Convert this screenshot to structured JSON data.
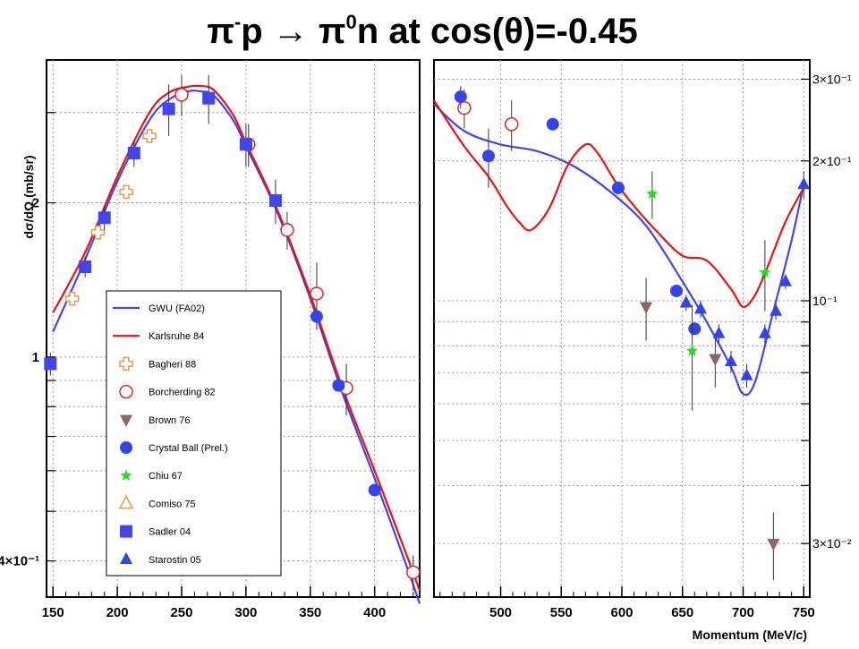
{
  "title": {
    "pi": "π",
    "minus": "-",
    "p": "p ",
    "arrow": "→",
    "pi2": " π",
    "zero": "0",
    "rest": "n at cos(θ)=-0.45"
  },
  "chart_data": [
    {
      "type": "line+scatter",
      "panel": "left",
      "ylabel": "dσ/dΩ (mb/sr)",
      "yscale": "log",
      "xlim": [
        145,
        435
      ],
      "ylim": [
        0.34,
        3.8
      ],
      "x_ticks": [
        150,
        200,
        250,
        300,
        350,
        400
      ],
      "y_tick_labels": [
        {
          "value": 2,
          "label": "2"
        },
        {
          "value": 1,
          "label": "1"
        },
        {
          "value": 0.4,
          "label": "4×10⁻¹"
        }
      ],
      "grid": true,
      "curves": [
        {
          "name": "GWU (FA02)",
          "color": "#4444ee",
          "x": [
            150,
            175,
            200,
            225,
            240,
            255,
            265,
            275,
            290,
            300,
            325,
            350,
            375,
            400,
            425,
            435
          ],
          "y": [
            1.12,
            1.55,
            2.2,
            2.9,
            3.18,
            3.3,
            3.3,
            3.24,
            2.9,
            2.58,
            1.9,
            1.3,
            0.85,
            0.58,
            0.39,
            0.33
          ]
        },
        {
          "name": "Karlsruhe 84",
          "color": "#ee1111",
          "x": [
            150,
            175,
            200,
            225,
            240,
            255,
            265,
            275,
            290,
            300,
            325,
            350,
            375,
            400,
            425,
            435
          ],
          "y": [
            1.22,
            1.6,
            2.25,
            3.0,
            3.28,
            3.37,
            3.38,
            3.32,
            2.97,
            2.62,
            1.92,
            1.32,
            0.87,
            0.6,
            0.41,
            0.35
          ]
        }
      ],
      "series": [
        {
          "name": "Bagheri 88",
          "marker": "cross-open",
          "color": "#ee9944",
          "x": [
            165,
            185,
            207,
            225
          ],
          "y": [
            1.3,
            1.75,
            2.1,
            2.7
          ],
          "err": [
            0.04,
            0.05,
            0.06,
            0.08
          ]
        },
        {
          "name": "Borcherding 82",
          "marker": "circle-open",
          "color": "#ee2222",
          "x": [
            250,
            302,
            332,
            355,
            378,
            430
          ],
          "y": [
            3.25,
            2.6,
            1.77,
            1.33,
            0.87,
            0.38
          ],
          "err": [
            0.3,
            0.25,
            0.15,
            0.2,
            0.1,
            0.03
          ]
        },
        {
          "name": "Brown 76",
          "marker": "triangle-down",
          "color": "#886666",
          "x": [],
          "y": [],
          "err": []
        },
        {
          "name": "Crystal Ball (Prel.)",
          "marker": "circle",
          "color": "#3344ee",
          "x": [
            355,
            372,
            400
          ],
          "y": [
            1.2,
            0.88,
            0.55
          ],
          "err": [
            0,
            0,
            0
          ]
        },
        {
          "name": "Chiu 67",
          "marker": "star",
          "color": "#22dd22",
          "x": [],
          "y": [],
          "err": []
        },
        {
          "name": "Comiso 75",
          "marker": "triangle-open",
          "color": "#ee9944",
          "x": [],
          "y": [],
          "err": []
        },
        {
          "name": "Sadler 04",
          "marker": "square",
          "color": "#4444ee",
          "x": [
            148,
            175,
            190,
            213,
            240,
            271,
            300,
            323
          ],
          "y": [
            0.97,
            1.5,
            1.87,
            2.5,
            3.05,
            3.2,
            2.6,
            2.02
          ],
          "err": [
            0.05,
            0.07,
            0.1,
            0.15,
            0.35,
            0.35,
            0.25,
            0.2
          ]
        },
        {
          "name": "Starostin 05",
          "marker": "triangle",
          "color": "#3344ee",
          "x": [],
          "y": [],
          "err": []
        }
      ],
      "legend": "lower-left"
    },
    {
      "type": "line+scatter",
      "panel": "right",
      "xlabel": "Momentum (MeV/c)",
      "yscale": "log",
      "xlim": [
        445,
        755
      ],
      "ylim": [
        0.023,
        0.33
      ],
      "x_ticks": [
        500,
        550,
        600,
        650,
        700,
        750
      ],
      "y_tick_labels": [
        {
          "value": 0.3,
          "label": "3×10⁻¹"
        },
        {
          "value": 0.2,
          "label": "2×10⁻¹"
        },
        {
          "value": 0.1,
          "label": "10⁻¹"
        },
        {
          "value": 0.03,
          "label": "3×10⁻²"
        }
      ],
      "grid": true,
      "curves": [
        {
          "name": "GWU (FA02)",
          "color": "#4444ee",
          "x": [
            445,
            470,
            500,
            530,
            560,
            590,
            620,
            650,
            670,
            690,
            700,
            710,
            725,
            740,
            750
          ],
          "y": [
            0.265,
            0.232,
            0.217,
            0.21,
            0.195,
            0.172,
            0.145,
            0.11,
            0.09,
            0.072,
            0.063,
            0.067,
            0.095,
            0.135,
            0.178
          ]
        },
        {
          "name": "Karlsruhe 84",
          "color": "#ee1111",
          "x": [
            445,
            470,
            490,
            505,
            515,
            525,
            540,
            555,
            570,
            580,
            595,
            610,
            630,
            650,
            670,
            690,
            700,
            710,
            720,
            735,
            750
          ],
          "y": [
            0.27,
            0.215,
            0.185,
            0.16,
            0.148,
            0.142,
            0.158,
            0.195,
            0.217,
            0.208,
            0.18,
            0.16,
            0.14,
            0.125,
            0.122,
            0.106,
            0.097,
            0.103,
            0.118,
            0.148,
            0.175
          ]
        }
      ],
      "series": [
        {
          "name": "Borcherding 82",
          "marker": "circle-open",
          "color": "#ee2222",
          "x": [
            470,
            509
          ],
          "y": [
            0.26,
            0.24
          ],
          "err": [
            0.025,
            0.03
          ]
        },
        {
          "name": "Brown 76",
          "marker": "triangle-down",
          "color": "#886666",
          "x": [
            620,
            677,
            725
          ],
          "y": [
            0.097,
            0.075,
            0.03
          ],
          "err": [
            0.015,
            0.01,
            0.005
          ]
        },
        {
          "name": "Crystal Ball (Prel.)",
          "marker": "circle",
          "color": "#3344ee",
          "x": [
            467,
            490,
            543,
            597,
            645,
            660
          ],
          "y": [
            0.275,
            0.205,
            0.24,
            0.175,
            0.105,
            0.087
          ],
          "err": [
            0.015,
            0.03,
            0,
            0,
            0,
            0
          ]
        },
        {
          "name": "Chiu 67",
          "marker": "star",
          "color": "#22dd22",
          "x": [
            625,
            658,
            718
          ],
          "y": [
            0.17,
            0.078,
            0.115
          ],
          "err": [
            0.02,
            0.02,
            0.02
          ]
        },
        {
          "name": "Starostin 05",
          "marker": "triangle",
          "color": "#3344ee",
          "x": [
            653,
            665,
            680,
            690,
            703,
            718,
            727,
            735,
            750
          ],
          "y": [
            0.099,
            0.096,
            0.085,
            0.074,
            0.069,
            0.085,
            0.095,
            0.11,
            0.178
          ],
          "err": [
            0.004,
            0.004,
            0.004,
            0.004,
            0.004,
            0.004,
            0.004,
            0.004,
            0.012
          ]
        }
      ]
    }
  ]
}
